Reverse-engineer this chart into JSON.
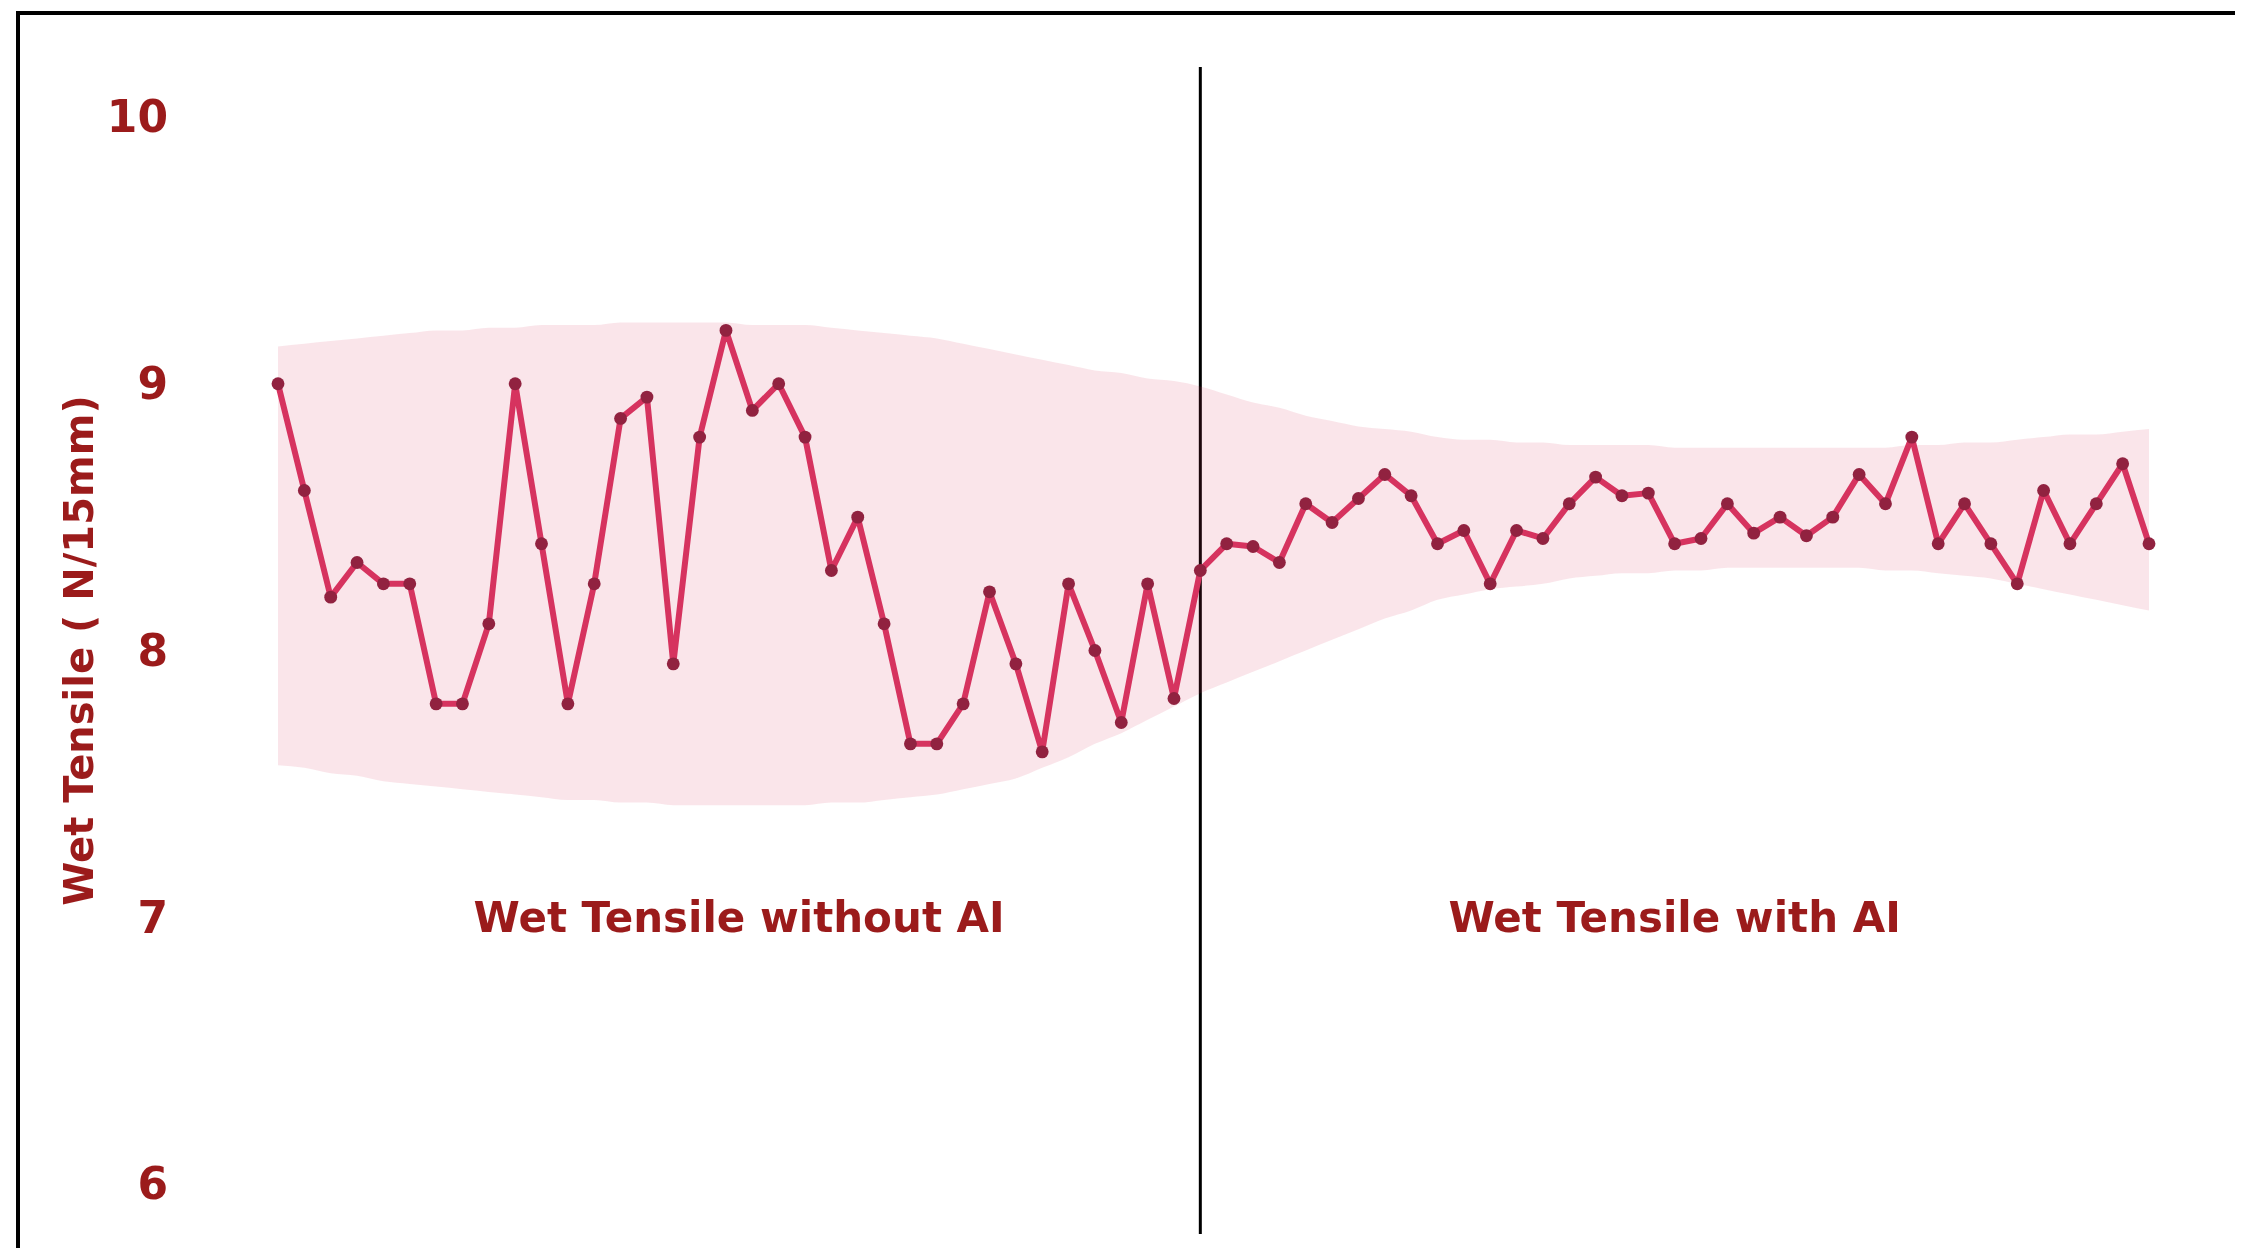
{
  "chart_data": {
    "type": "line",
    "ylabel": "Wet Tensile ( N/15mm)",
    "ylim": [
      6,
      10
    ],
    "yticks": [
      6,
      7,
      8,
      9,
      10
    ],
    "grid": false,
    "marker": "circle",
    "line_style": "solid",
    "categories": [
      null,
      null,
      null,
      null,
      null,
      null,
      null,
      null,
      null,
      null,
      null,
      null,
      null,
      null,
      null,
      null,
      null,
      null,
      null,
      null,
      null,
      null,
      null,
      null,
      null,
      null,
      null,
      null,
      null,
      null,
      null,
      null,
      null,
      null,
      null,
      null,
      null,
      null,
      null,
      null,
      null,
      null,
      null,
      null,
      null,
      null,
      null,
      null,
      null,
      null,
      null,
      null,
      null,
      null,
      null,
      null,
      null,
      null,
      null,
      null,
      null,
      null,
      null,
      null,
      null,
      null,
      null,
      null,
      null,
      null,
      null,
      null
    ],
    "series": [
      {
        "color": "#d6335f",
        "values": [
          9.0,
          8.6,
          8.2,
          8.33,
          8.25,
          8.25,
          7.8,
          7.8,
          8.1,
          9.0,
          8.4,
          7.8,
          8.25,
          8.87,
          8.95,
          7.95,
          8.8,
          9.2,
          8.9,
          9.0,
          8.8,
          8.3,
          8.5,
          8.1,
          7.65,
          7.65,
          7.8,
          8.22,
          7.95,
          7.62,
          8.25,
          8.0,
          7.73,
          8.25,
          7.82,
          8.3,
          8.4,
          8.39,
          8.33,
          8.55,
          8.48,
          8.57,
          8.66,
          8.58,
          8.4,
          8.45,
          8.25,
          8.45,
          8.42,
          8.55,
          8.65,
          8.58,
          8.59,
          8.4,
          8.42,
          8.55,
          8.44,
          8.5,
          8.43,
          8.5,
          8.66,
          8.55,
          8.8,
          8.4,
          8.55,
          8.4,
          8.25,
          8.6,
          8.4,
          8.55,
          8.7,
          8.4
        ],
        "upper": [
          9.14,
          9.15,
          9.16,
          9.17,
          9.18,
          9.19,
          9.2,
          9.2,
          9.21,
          9.21,
          9.22,
          9.22,
          9.22,
          9.23,
          9.23,
          9.23,
          9.23,
          9.23,
          9.22,
          9.22,
          9.22,
          9.21,
          9.2,
          9.19,
          9.18,
          9.17,
          9.15,
          9.13,
          9.11,
          9.09,
          9.07,
          9.05,
          9.04,
          9.02,
          9.01,
          8.99,
          8.96,
          8.93,
          8.91,
          8.88,
          8.86,
          8.84,
          8.83,
          8.82,
          8.8,
          8.79,
          8.79,
          8.78,
          8.78,
          8.77,
          8.77,
          8.77,
          8.77,
          8.76,
          8.76,
          8.76,
          8.76,
          8.76,
          8.76,
          8.76,
          8.76,
          8.76,
          8.77,
          8.77,
          8.78,
          8.78,
          8.79,
          8.8,
          8.81,
          8.81,
          8.82,
          8.83
        ],
        "lower": [
          7.57,
          7.56,
          7.54,
          7.53,
          7.51,
          7.5,
          7.49,
          7.48,
          7.47,
          7.46,
          7.45,
          7.44,
          7.44,
          7.43,
          7.43,
          7.42,
          7.42,
          7.42,
          7.42,
          7.42,
          7.42,
          7.43,
          7.43,
          7.44,
          7.45,
          7.46,
          7.48,
          7.5,
          7.52,
          7.56,
          7.6,
          7.65,
          7.69,
          7.74,
          7.79,
          7.84,
          7.88,
          7.92,
          7.96,
          8.0,
          8.04,
          8.08,
          8.12,
          8.15,
          8.19,
          8.21,
          8.23,
          8.24,
          8.25,
          8.27,
          8.28,
          8.29,
          8.29,
          8.3,
          8.3,
          8.31,
          8.31,
          8.31,
          8.31,
          8.31,
          8.31,
          8.3,
          8.3,
          8.29,
          8.28,
          8.27,
          8.25,
          8.23,
          8.21,
          8.19,
          8.17,
          8.15
        ]
      }
    ],
    "annotations": [
      "Wet Tensile without AI",
      "Wet Tensile with AI"
    ]
  }
}
